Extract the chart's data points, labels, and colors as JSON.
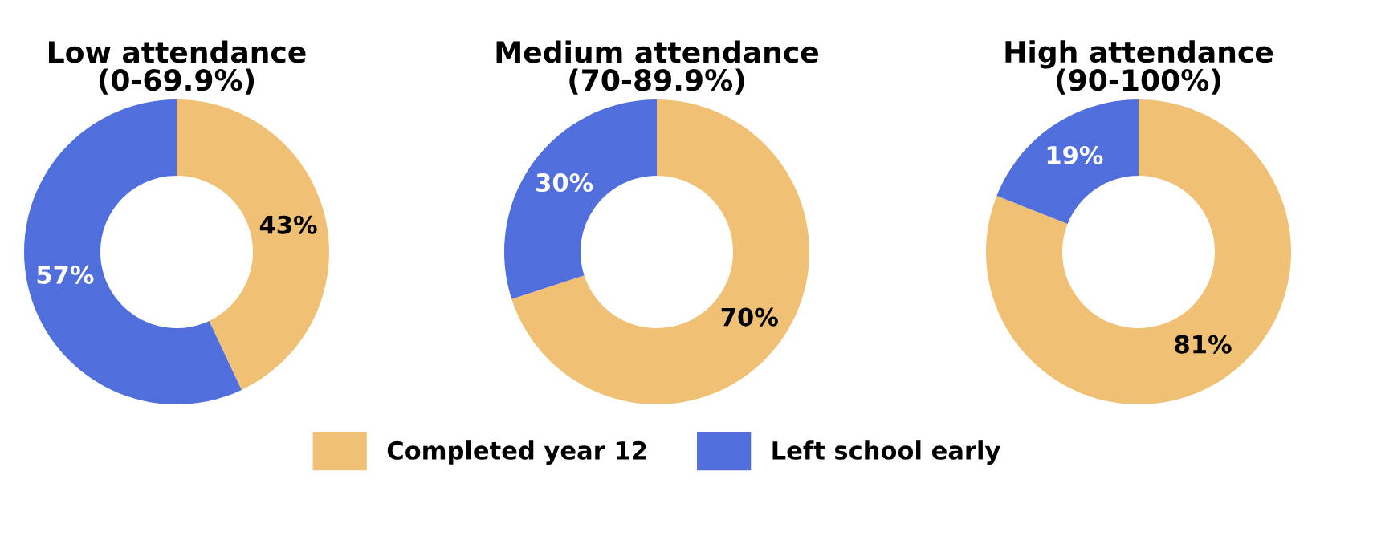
{
  "chart_data": [
    {
      "type": "donut",
      "title": "Low attendance\n(0-69.9%)",
      "categories": [
        "Completed year 12",
        "Left school early"
      ],
      "values": [
        43,
        57
      ],
      "colors": [
        "#f0c175",
        "#516fdc"
      ],
      "value_labels": [
        "43%",
        "57%"
      ],
      "legend": "bottom"
    },
    {
      "type": "donut",
      "title": "Medium attendance\n(70-89.9%)",
      "categories": [
        null,
        null
      ],
      "values": [
        70,
        30
      ],
      "colors": [
        "#f0c175",
        "#516fdc"
      ],
      "value_labels": [
        "70%",
        "30%"
      ]
    },
    {
      "type": "donut",
      "title": "High attendance\n(90-100%)",
      "categories": [
        null,
        null
      ],
      "values": [
        81,
        19
      ],
      "colors": [
        "#f0c175",
        "#516fdc"
      ],
      "value_labels": [
        "81%",
        "19%"
      ]
    }
  ]
}
